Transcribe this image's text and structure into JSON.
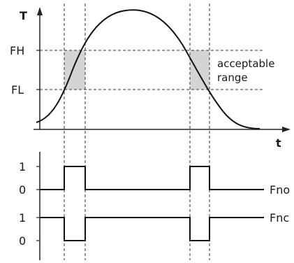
{
  "top_chart": {
    "y_axis_label": "T",
    "x_axis_label": "t",
    "level_high": "FH",
    "level_low": "FL",
    "range_label_line1": "acceptable",
    "range_label_line2": "range"
  },
  "bottom_chart": {
    "tick_one": "1",
    "tick_zero": "0",
    "signal_no": "Fno",
    "signal_nc": "Fnc"
  },
  "colors": {
    "band": "#d4d4d4",
    "line": "#111111"
  }
}
